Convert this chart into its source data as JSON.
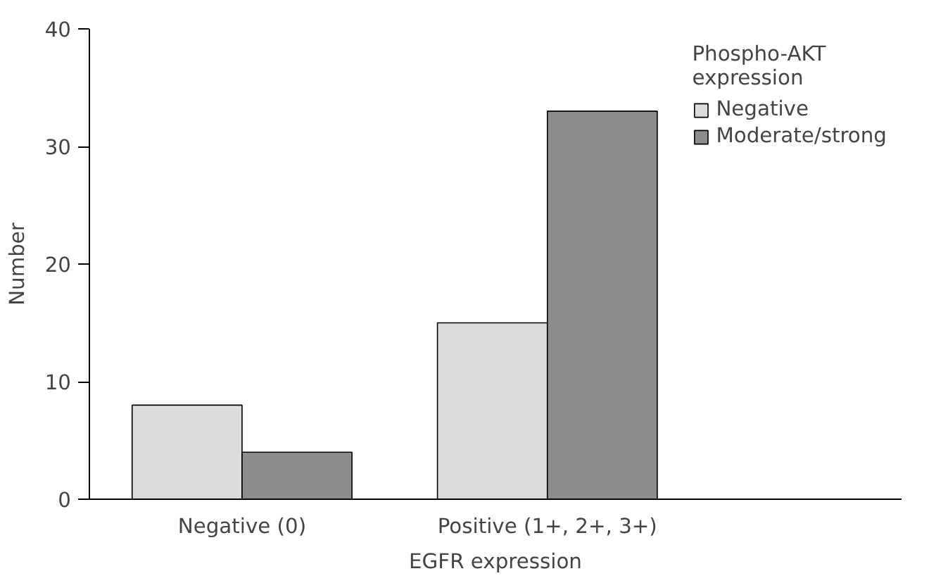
{
  "chart_data": {
    "type": "bar",
    "xlabel": "EGFR expression",
    "ylabel": "Number",
    "legend_title": "Phospho-AKT expression",
    "categories": [
      "Negative (0)",
      "Positive (1+, 2+, 3+)"
    ],
    "series": [
      {
        "name": "Negative",
        "color": "#dcdcdc",
        "values": [
          8,
          15
        ]
      },
      {
        "name": "Moderate/strong",
        "color": "#8c8c8c",
        "values": [
          4,
          33
        ]
      }
    ],
    "ylim": [
      0,
      40
    ],
    "yticks": [
      0,
      10,
      20,
      30,
      40
    ],
    "grid": false,
    "legend": "top right"
  }
}
